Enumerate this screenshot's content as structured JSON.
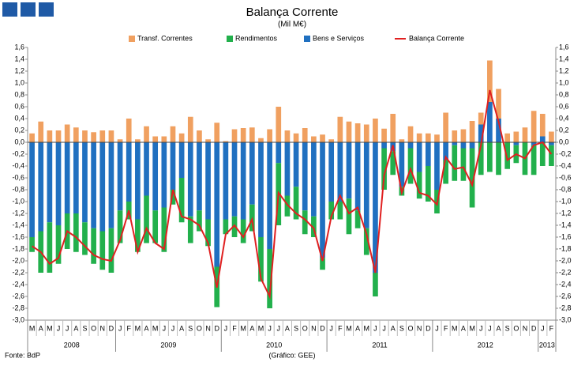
{
  "chart_data": {
    "type": "bar",
    "title": "Balança Corrente",
    "subtitle": "(Mil M€)",
    "source": "Fonte: BdP",
    "credit": "(Gráfico: GEE)",
    "categories": [
      "M",
      "A",
      "M",
      "J",
      "J",
      "A",
      "S",
      "O",
      "N",
      "D",
      "J",
      "F",
      "M",
      "A",
      "M",
      "J",
      "J",
      "A",
      "S",
      "O",
      "N",
      "D",
      "J",
      "F",
      "M",
      "A",
      "M",
      "J",
      "J",
      "A",
      "S",
      "O",
      "N",
      "D",
      "J",
      "F",
      "M",
      "A",
      "M",
      "J",
      "J",
      "A",
      "S",
      "O",
      "N",
      "D",
      "J",
      "F",
      "M",
      "A",
      "M",
      "J",
      "J",
      "A",
      "S",
      "O",
      "N",
      "D",
      "J",
      "F"
    ],
    "years": [
      "2008",
      "2009",
      "2010",
      "2011",
      "2012",
      "2013"
    ],
    "series": [
      {
        "name": "Transf. Correntes",
        "color": "#f0a060",
        "type": "bar",
        "values": [
          0.15,
          0.35,
          0.2,
          0.2,
          0.3,
          0.25,
          0.2,
          0.17,
          0.2,
          0.2,
          0.05,
          0.4,
          0.05,
          0.27,
          0.1,
          0.1,
          0.27,
          0.15,
          0.43,
          0.2,
          0.05,
          0.33,
          0.02,
          0.22,
          0.24,
          0.25,
          0.07,
          0.22,
          0.6,
          0.2,
          0.15,
          0.24,
          0.1,
          0.13,
          0.05,
          0.43,
          0.35,
          0.32,
          0.3,
          0.4,
          0.23,
          0.48,
          0.05,
          0.27,
          0.15,
          0.15,
          0.13,
          0.5,
          0.2,
          0.22,
          0.36,
          0.2,
          0.7,
          0.5,
          0.15,
          0.18,
          0.25,
          0.53,
          0.38,
          0.18
        ]
      },
      {
        "name": "Rendimentos",
        "color": "#22b04c",
        "type": "bar",
        "values": [
          -0.25,
          -0.7,
          -0.85,
          -0.65,
          -0.6,
          -0.65,
          -0.55,
          -0.6,
          -0.65,
          -0.75,
          -0.55,
          -0.3,
          -0.55,
          -0.8,
          -0.55,
          -0.75,
          -0.25,
          -0.75,
          -0.45,
          -0.35,
          -0.45,
          -0.68,
          -0.25,
          -0.35,
          -0.4,
          -0.45,
          -0.75,
          -1.0,
          -1.05,
          -0.35,
          -0.55,
          -0.4,
          -0.35,
          -0.2,
          -0.3,
          -0.3,
          -0.6,
          -0.3,
          -0.45,
          -0.4,
          -0.7,
          -0.4,
          -0.15,
          -0.6,
          -0.45,
          -0.6,
          -0.4,
          -0.4,
          -0.6,
          -0.55,
          -1.0,
          -0.55,
          -0.5,
          -0.55,
          -0.45,
          -0.3,
          -0.55,
          -0.5,
          -0.4,
          -0.35
        ]
      },
      {
        "name": "Bens e Serviços",
        "color": "#2070c0",
        "type": "bar",
        "values": [
          -1.6,
          -1.5,
          -1.35,
          -1.4,
          -1.2,
          -1.2,
          -1.35,
          -1.45,
          -1.5,
          -1.45,
          -1.15,
          -1.0,
          -1.3,
          -0.9,
          -1.15,
          -1.1,
          -0.8,
          -0.6,
          -1.25,
          -1.15,
          -1.3,
          -2.1,
          -1.3,
          -1.25,
          -1.3,
          -1.05,
          -1.6,
          -1.8,
          -0.35,
          -0.9,
          -0.75,
          -1.15,
          -1.25,
          -1.95,
          -1.0,
          -1.0,
          -0.95,
          -1.15,
          -1.45,
          -2.2,
          -0.1,
          -0.15,
          -0.75,
          -0.1,
          -0.5,
          -0.4,
          -0.8,
          -0.3,
          -0.05,
          -0.1,
          -0.1,
          0.3,
          0.68,
          0.4,
          0.0,
          -0.05,
          0.0,
          -0.05,
          0.1,
          -0.05
        ]
      },
      {
        "name": "Balança Corrente",
        "color": "#e02020",
        "type": "line",
        "values": [
          -1.75,
          -1.85,
          -2.05,
          -1.95,
          -1.5,
          -1.6,
          -1.75,
          -1.9,
          -1.97,
          -2.0,
          -1.65,
          -1.15,
          -1.85,
          -1.45,
          -1.7,
          -1.8,
          -0.8,
          -1.25,
          -1.3,
          -1.4,
          -1.7,
          -2.45,
          -1.55,
          -1.4,
          -1.6,
          -1.3,
          -2.3,
          -2.6,
          -0.85,
          -1.05,
          -1.2,
          -1.3,
          -1.45,
          -2.0,
          -1.25,
          -0.9,
          -1.2,
          -1.1,
          -1.55,
          -2.2,
          -0.55,
          -0.05,
          -0.85,
          -0.45,
          -0.85,
          -0.9,
          -1.05,
          -0.25,
          -0.45,
          -0.42,
          -0.72,
          -0.05,
          0.88,
          0.35,
          -0.3,
          -0.2,
          -0.27,
          -0.05,
          0.0,
          -0.2
        ]
      }
    ],
    "ylim": [
      -3.0,
      1.6
    ],
    "yticks": [
      {
        "value": -3.0,
        "label": "-3,0"
      },
      {
        "value": -2.8,
        "label": "-2,8"
      },
      {
        "value": -2.6,
        "label": "-2,6"
      },
      {
        "value": -2.4,
        "label": "-2,4"
      },
      {
        "value": -2.2,
        "label": "-2,2"
      },
      {
        "value": -2.0,
        "label": "-2,0"
      },
      {
        "value": -1.8,
        "label": "-1,8"
      },
      {
        "value": -1.6,
        "label": "-1,6"
      },
      {
        "value": -1.4,
        "label": "-1,4"
      },
      {
        "value": -1.2,
        "label": "-1,2"
      },
      {
        "value": -1.0,
        "label": "-1,0"
      },
      {
        "value": -0.8,
        "label": "-0,8"
      },
      {
        "value": -0.6,
        "label": "-0,6"
      },
      {
        "value": -0.4,
        "label": "-0,4"
      },
      {
        "value": -0.2,
        "label": "-0,2"
      },
      {
        "value": 0,
        "label": "0,0"
      },
      {
        "value": 0.2,
        "label": "0,2"
      },
      {
        "value": 0.4,
        "label": "0,4"
      },
      {
        "value": 0.6,
        "label": "0,6"
      },
      {
        "value": 0.8,
        "label": "0,8"
      },
      {
        "value": 1.0,
        "label": "1,0"
      },
      {
        "value": 1.2,
        "label": "1,2"
      },
      {
        "value": 1.4,
        "label": "1,4"
      },
      {
        "value": 1.6,
        "label": "1,6"
      }
    ],
    "grid": false
  }
}
